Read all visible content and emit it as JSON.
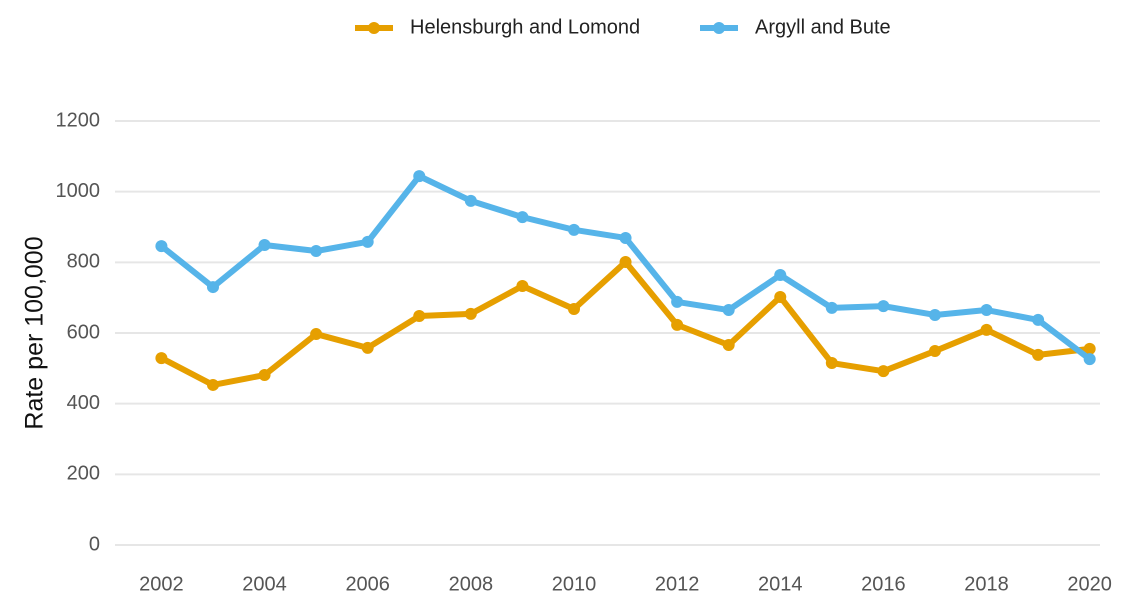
{
  "chart_data": {
    "type": "line",
    "ylabel": "Rate per 100,000",
    "x": [
      2002,
      2003,
      2004,
      2005,
      2006,
      2007,
      2008,
      2009,
      2010,
      2011,
      2012,
      2013,
      2014,
      2015,
      2016,
      2017,
      2018,
      2019,
      2020
    ],
    "series": [
      {
        "name": "Helensburgh and Lomond",
        "color": "#e69f00",
        "values": [
          529,
          453,
          481,
          597,
          558,
          648,
          654,
          733,
          668,
          801,
          623,
          566,
          702,
          515,
          492,
          549,
          609,
          538,
          555
        ]
      },
      {
        "name": "Argyll and Bute",
        "color": "#56b4e9",
        "values": [
          846,
          730,
          849,
          832,
          858,
          1044,
          974,
          928,
          892,
          869,
          688,
          665,
          764,
          671,
          676,
          651,
          665,
          637,
          526
        ]
      }
    ],
    "xlim": [
      2001.1,
      2020.2
    ],
    "xticks": [
      2002,
      2004,
      2006,
      2008,
      2010,
      2012,
      2014,
      2016,
      2018,
      2020
    ],
    "ylim": [
      0,
      1200
    ],
    "yticks": [
      0,
      200,
      400,
      600,
      800,
      1000,
      1200
    ],
    "grid": true,
    "legend": "top"
  }
}
